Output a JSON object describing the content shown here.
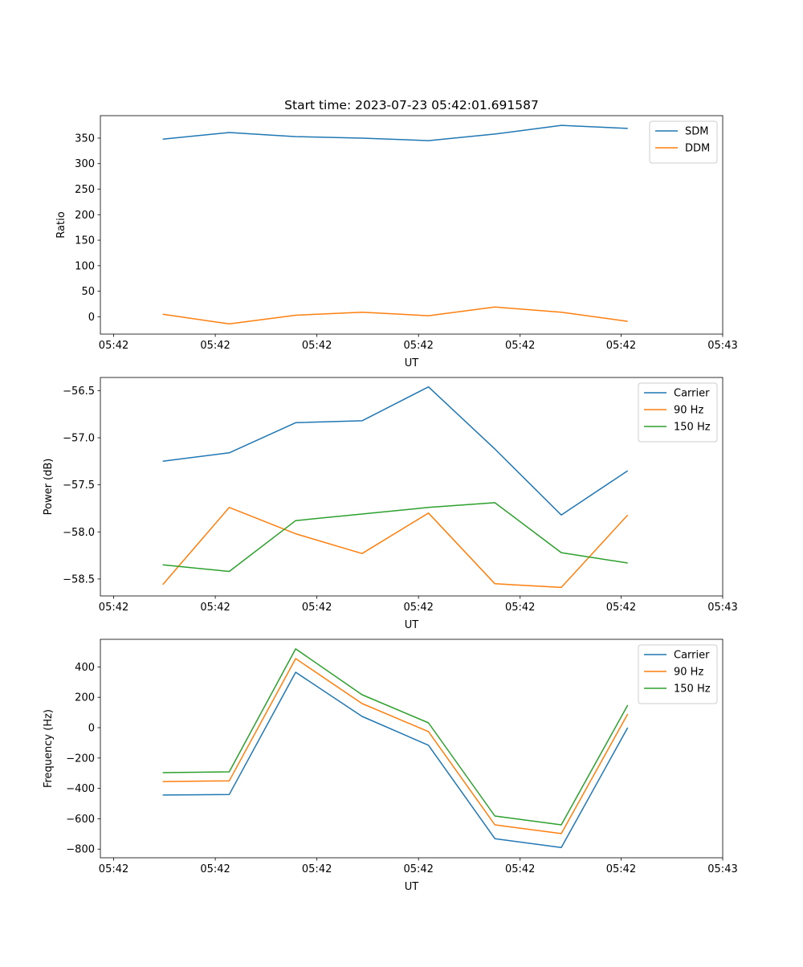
{
  "colors": {
    "blue": "#1f77b4",
    "orange": "#ff7f0e",
    "green": "#2ca02c"
  },
  "chart_data": [
    {
      "type": "line",
      "title": "Start time: 2023-07-23 05:42:01.691587",
      "xlabel": "UT",
      "ylabel": "Ratio",
      "x": [
        0,
        1,
        2,
        3,
        4,
        5,
        6,
        7
      ],
      "xlim": [
        -0.94,
        8.43
      ],
      "xticks": [
        -0.74,
        0.79,
        2.32,
        3.85,
        5.38,
        6.9,
        8.43
      ],
      "xtick_labels": [
        "05:42",
        "05:42",
        "05:42",
        "05:42",
        "05:42",
        "05:42",
        "05:43"
      ],
      "ylim": [
        -34,
        394
      ],
      "yticks": [
        0,
        50,
        100,
        150,
        200,
        250,
        300,
        350
      ],
      "ytick_labels": [
        "0",
        "50",
        "100",
        "150",
        "200",
        "250",
        "300",
        "350"
      ],
      "legend": "top-right",
      "series": [
        {
          "name": "SDM",
          "color": "#1f77b4",
          "values": [
            348,
            361,
            353,
            350,
            345,
            358,
            375,
            369
          ]
        },
        {
          "name": "DDM",
          "color": "#ff7f0e",
          "values": [
            5,
            -14,
            3,
            9,
            2,
            19,
            9,
            -9
          ]
        }
      ]
    },
    {
      "type": "line",
      "title": "",
      "xlabel": "UT",
      "ylabel": "Power (dB)",
      "x": [
        0,
        1,
        2,
        3,
        4,
        5,
        6,
        7
      ],
      "xlim": [
        -0.94,
        8.43
      ],
      "xticks": [
        -0.74,
        0.79,
        2.32,
        3.85,
        5.38,
        6.9,
        8.43
      ],
      "xtick_labels": [
        "05:42",
        "05:42",
        "05:42",
        "05:42",
        "05:42",
        "05:42",
        "05:43"
      ],
      "ylim": [
        -58.68,
        -56.36
      ],
      "yticks": [
        -58.5,
        -58.0,
        -57.5,
        -57.0,
        -56.5
      ],
      "ytick_labels": [
        "−58.5",
        "−58.0",
        "−57.5",
        "−57.0",
        "−56.5"
      ],
      "legend": "top-right",
      "series": [
        {
          "name": "Carrier",
          "color": "#1f77b4",
          "values": [
            -57.25,
            -57.16,
            -56.84,
            -56.82,
            -56.46,
            -57.12,
            -57.82,
            -57.35
          ]
        },
        {
          "name": "90 Hz",
          "color": "#ff7f0e",
          "values": [
            -58.56,
            -57.74,
            -58.02,
            -58.23,
            -57.8,
            -58.55,
            -58.59,
            -57.82
          ]
        },
        {
          "name": "150 Hz",
          "color": "#2ca02c",
          "values": [
            -58.35,
            -58.42,
            -57.88,
            -57.81,
            -57.74,
            -57.69,
            -58.22,
            -58.33
          ]
        }
      ]
    },
    {
      "type": "line",
      "title": "",
      "xlabel": "UT",
      "ylabel": "Frequency (Hz)",
      "x": [
        0,
        1,
        2,
        3,
        4,
        5,
        6,
        7
      ],
      "xlim": [
        -0.94,
        8.43
      ],
      "xticks": [
        -0.74,
        0.79,
        2.32,
        3.85,
        5.38,
        6.9,
        8.43
      ],
      "xtick_labels": [
        "05:42",
        "05:42",
        "05:42",
        "05:42",
        "05:42",
        "05:42",
        "05:43"
      ],
      "ylim": [
        -857,
        582
      ],
      "yticks": [
        -800,
        -600,
        -400,
        -200,
        0,
        200,
        400
      ],
      "ytick_labels": [
        "−800",
        "−600",
        "−400",
        "−200",
        "0",
        "200",
        "400"
      ],
      "legend": "top-right",
      "series": [
        {
          "name": "Carrier",
          "color": "#1f77b4",
          "values": [
            -444,
            -440,
            365,
            74,
            -116,
            -731,
            -790,
            0
          ]
        },
        {
          "name": "90 Hz",
          "color": "#ff7f0e",
          "values": [
            -355,
            -350,
            455,
            159,
            -26,
            -640,
            -698,
            90
          ]
        },
        {
          "name": "150 Hz",
          "color": "#2ca02c",
          "values": [
            -296,
            -291,
            519,
            217,
            32,
            -582,
            -640,
            148
          ]
        }
      ]
    }
  ]
}
